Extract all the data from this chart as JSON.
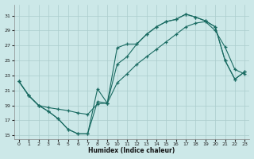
{
  "xlabel": "Humidex (Indice chaleur)",
  "xlim": [
    -0.5,
    23.5
  ],
  "ylim": [
    14.5,
    32.5
  ],
  "xticks": [
    0,
    1,
    2,
    3,
    4,
    5,
    6,
    7,
    8,
    9,
    10,
    11,
    12,
    13,
    14,
    15,
    16,
    17,
    18,
    19,
    20,
    21,
    22,
    23
  ],
  "yticks": [
    15,
    17,
    19,
    21,
    23,
    25,
    27,
    29,
    31
  ],
  "bg_color": "#cce8e8",
  "grid_color": "#aacccc",
  "line_color": "#1a6b62",
  "curve1_x": [
    0,
    1,
    2,
    3,
    4,
    5,
    6,
    7,
    8,
    9,
    10,
    11,
    12,
    13,
    14,
    15,
    16,
    17,
    18,
    19,
    20,
    21,
    22,
    23
  ],
  "curve1_y": [
    22.2,
    20.3,
    19.0,
    18.2,
    17.2,
    15.8,
    15.2,
    15.2,
    21.2,
    19.3,
    26.7,
    27.2,
    27.2,
    28.5,
    29.5,
    30.2,
    30.5,
    31.2,
    30.8,
    30.3,
    29.5,
    25.0,
    22.5,
    23.5
  ],
  "curve2_x": [
    0,
    1,
    2,
    3,
    4,
    5,
    6,
    7,
    8,
    9,
    10,
    11,
    12,
    13,
    14,
    15,
    16,
    17,
    18,
    19,
    20,
    21,
    22,
    23
  ],
  "curve2_y": [
    22.2,
    20.3,
    19.0,
    18.2,
    17.2,
    15.8,
    15.2,
    15.2,
    19.5,
    19.3,
    24.5,
    25.5,
    27.2,
    28.5,
    29.5,
    30.2,
    30.5,
    31.2,
    30.8,
    30.3,
    29.5,
    25.0,
    22.5,
    23.5
  ],
  "curve3_x": [
    0,
    1,
    2,
    3,
    4,
    5,
    6,
    7,
    8,
    9,
    10,
    11,
    12,
    13,
    14,
    15,
    16,
    17,
    18,
    19,
    20,
    21,
    22,
    23
  ],
  "curve3_y": [
    22.2,
    20.3,
    19.0,
    18.7,
    18.5,
    18.3,
    18.0,
    17.8,
    19.2,
    19.3,
    22.0,
    23.2,
    24.5,
    25.5,
    26.5,
    27.5,
    28.5,
    29.5,
    30.0,
    30.2,
    29.0,
    26.8,
    23.8,
    23.2
  ]
}
